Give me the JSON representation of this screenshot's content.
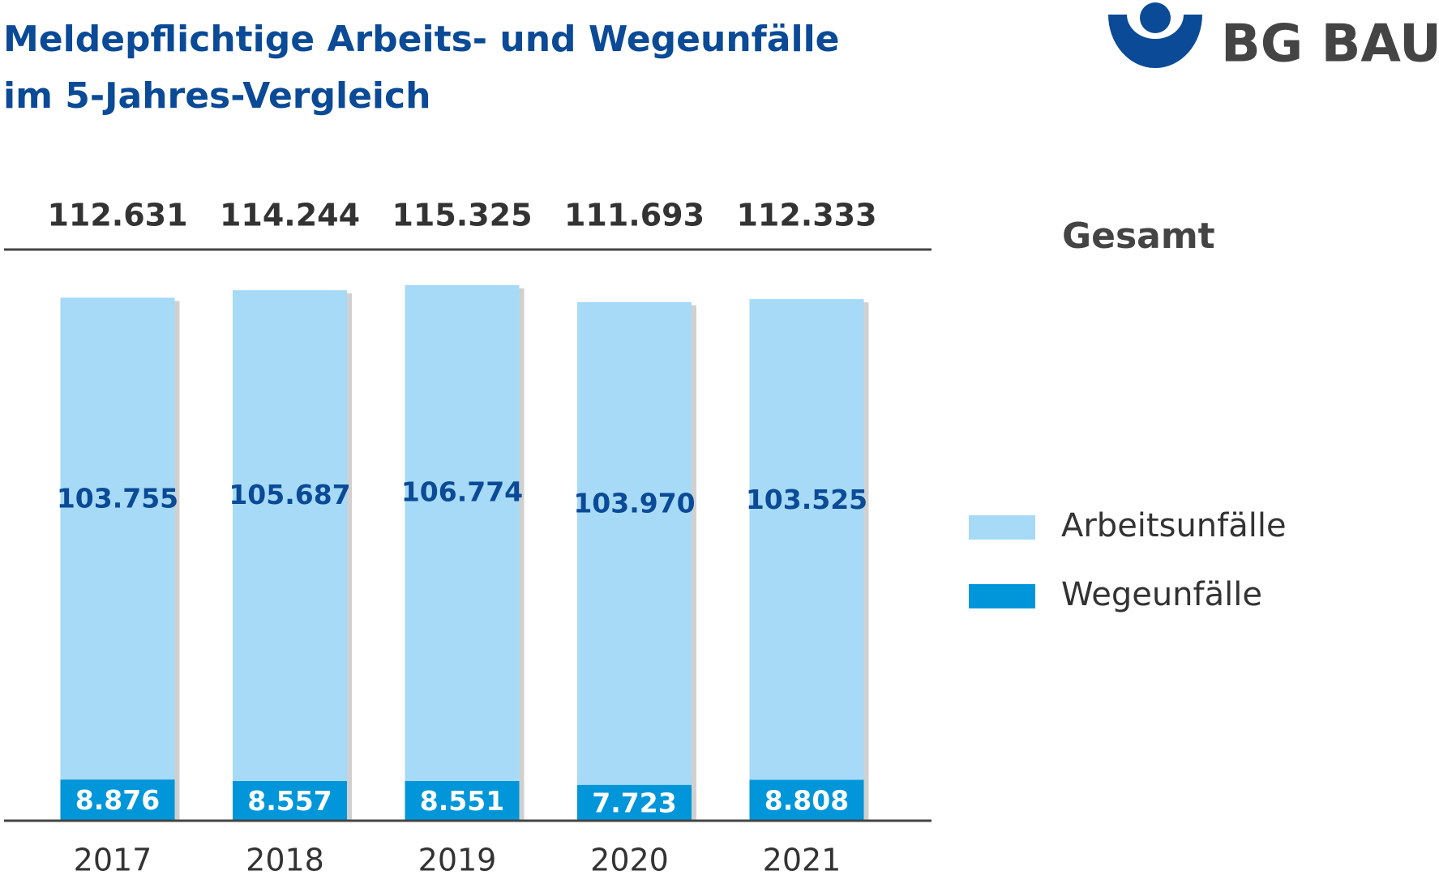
{
  "chart_data": {
    "type": "stacked_bar",
    "title": "Meldepflichtige Arbeits- und Wegeunfälle",
    "subtitle": "im 5-Jahres-Vergleich",
    "logo": "BG BAU",
    "totals_label": "Gesamt",
    "categories": [
      "2017",
      "2018",
      "2019",
      "2020",
      "2021"
    ],
    "series": [
      {
        "name": "Wegeunfälle",
        "color": "#0096d9",
        "values": [
          8876,
          8557,
          8551,
          7723,
          8808
        ],
        "value_labels": [
          "8.876",
          "8.557",
          "8.551",
          "7.723",
          "8.808"
        ]
      },
      {
        "name": "Arbeitsunfälle",
        "color": "#a6daf7",
        "values": [
          103755,
          105687,
          106774,
          103970,
          103525
        ],
        "value_labels": [
          "103.755",
          "105.687",
          "106.774",
          "103.970",
          "103.525"
        ]
      }
    ],
    "totals": {
      "values": [
        112631,
        114244,
        115325,
        111693,
        112333
      ],
      "value_labels": [
        "112.631",
        "114.244",
        "115.325",
        "111.693",
        "112.333"
      ]
    },
    "ylim": [
      0,
      123000
    ],
    "legend": "right"
  }
}
